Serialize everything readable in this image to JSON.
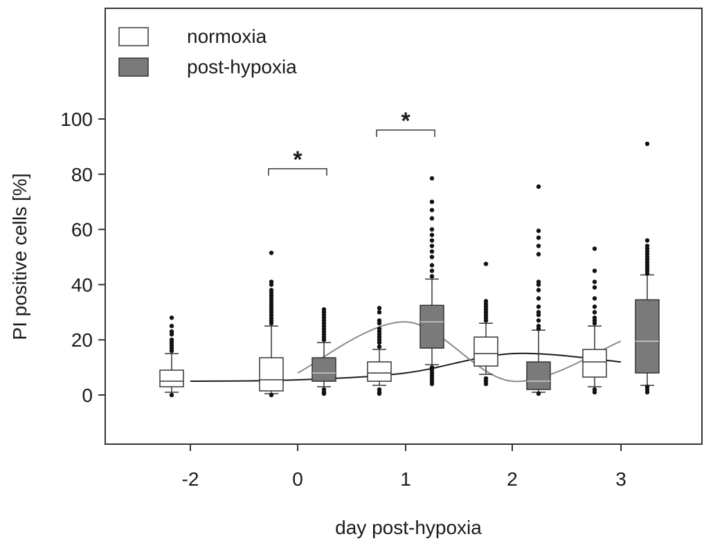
{
  "chart_data": {
    "type": "box",
    "xlabel": "day post-hypoxia",
    "ylabel": "PI positive cells [%]",
    "ylim": [
      -18,
      140
    ],
    "yticks": [
      0,
      20,
      40,
      60,
      80,
      100
    ],
    "categories": [
      "-2",
      "0",
      "1",
      "2",
      "3"
    ],
    "legend": {
      "position": "top-left",
      "entries": [
        {
          "label": "normoxia",
          "color": "#ffffff"
        },
        {
          "label": "post-hypoxia",
          "color": "#7a7a7a"
        }
      ]
    },
    "series": [
      {
        "name": "normoxia",
        "color": "#ffffff",
        "boxes": [
          {
            "category": "-2",
            "q1": 3,
            "median": 5,
            "q3": 9,
            "whisker_low": 1,
            "whisker_high": 15,
            "outliers": [
              16,
              17,
              18,
              19,
              20,
              22,
              23,
              25,
              28,
              0
            ]
          },
          {
            "category": "0",
            "q1": 1.5,
            "median": 5.5,
            "q3": 13.5,
            "whisker_low": 0.5,
            "whisker_high": 25,
            "outliers": [
              26,
              27,
              28,
              29,
              30,
              31,
              32,
              33,
              34,
              35,
              36,
              37,
              38,
              40,
              41,
              51.5,
              0
            ]
          },
          {
            "category": "1",
            "q1": 5,
            "median": 8,
            "q3": 12,
            "whisker_low": 3.5,
            "whisker_high": 16.5,
            "outliers": [
              0.5,
              1,
              2,
              17.5,
              19,
              20,
              21,
              22,
              23,
              24,
              26,
              27,
              30,
              31.5
            ]
          },
          {
            "category": "2",
            "q1": 10.5,
            "median": 15,
            "q3": 21,
            "whisker_low": 7.5,
            "whisker_high": 26,
            "outliers": [
              4,
              5,
              6,
              27,
              28,
              29,
              30,
              31,
              32,
              33,
              34,
              47.5
            ]
          },
          {
            "category": "3",
            "q1": 6.5,
            "median": 12,
            "q3": 16.5,
            "whisker_low": 3,
            "whisker_high": 25,
            "outliers": [
              1,
              2,
              26,
              27,
              28,
              30,
              32,
              35,
              39,
              41,
              45,
              53
            ]
          }
        ]
      },
      {
        "name": "post-hypoxia",
        "color": "#7a7a7a",
        "boxes": [
          {
            "category": "0",
            "q1": 5,
            "median": 8,
            "q3": 13.5,
            "whisker_low": 3,
            "whisker_high": 19,
            "outliers": [
              0.5,
              1,
              2,
              20,
              21,
              22,
              23,
              24,
              25,
              26,
              27,
              28,
              29,
              30,
              31
            ]
          },
          {
            "category": "1",
            "q1": 17,
            "median": 26.5,
            "q3": 32.5,
            "whisker_low": 11,
            "whisker_high": 42,
            "outliers": [
              4,
              5,
              6,
              7,
              8,
              9,
              10,
              43,
              45,
              47,
              50,
              52,
              54,
              56,
              58,
              60,
              64,
              67,
              70,
              78.5
            ]
          },
          {
            "category": "2",
            "q1": 2,
            "median": 5,
            "q3": 12,
            "whisker_low": 1,
            "whisker_high": 23.5,
            "outliers": [
              0.5,
              24,
              25,
              27,
              29,
              30,
              32,
              35,
              38,
              40,
              41,
              51,
              54,
              57,
              59.5,
              75.5
            ]
          },
          {
            "category": "3",
            "q1": 8,
            "median": 19.5,
            "q3": 34.5,
            "whisker_low": 3.5,
            "whisker_high": 43.5,
            "outliers": [
              1,
              2,
              3,
              44,
              45,
              46,
              47,
              48,
              49,
              50,
              51,
              52,
              53,
              54,
              56,
              91
            ]
          }
        ]
      }
    ],
    "trend_lines": [
      {
        "series": "normoxia",
        "color": "#1a1a1a",
        "points": [
          [
            -2,
            5
          ],
          [
            0,
            5.5
          ],
          [
            1,
            8
          ],
          [
            2,
            15
          ],
          [
            3,
            12
          ]
        ]
      },
      {
        "series": "post-hypoxia",
        "color": "#8a8a8a",
        "points": [
          [
            0,
            8
          ],
          [
            1,
            26.5
          ],
          [
            2,
            5
          ],
          [
            3,
            19.5
          ]
        ]
      }
    ],
    "significance": [
      {
        "category": "0",
        "label": "*",
        "y": 82
      },
      {
        "category": "1",
        "label": "*",
        "y": 96
      }
    ]
  }
}
